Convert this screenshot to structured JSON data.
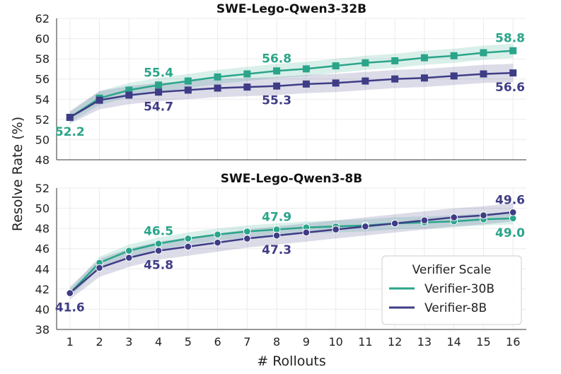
{
  "chart_data": {
    "type": "line",
    "x_label": "# Rollouts",
    "y_label": "Resolve Rate (%)",
    "legend": {
      "title": "Verifier Scale",
      "placement": "bottom-right of lower panel",
      "entries": [
        {
          "name": "Verifier-30B",
          "color": "#2aa58a"
        },
        {
          "name": "Verifier-8B",
          "color": "#3f3c86"
        }
      ]
    },
    "panels": [
      {
        "title": "SWE-Lego-Qwen3-32B",
        "x": [
          1,
          2,
          3,
          4,
          5,
          6,
          7,
          8,
          9,
          10,
          11,
          12,
          13,
          14,
          15,
          16
        ],
        "ylim": [
          48,
          62
        ],
        "yticks": [
          48,
          50,
          52,
          54,
          56,
          58,
          60,
          62
        ],
        "marker": "square",
        "series": [
          {
            "name": "Verifier-30B",
            "color": "#2aa58a",
            "values": [
              52.2,
              54.1,
              54.9,
              55.4,
              55.8,
              56.2,
              56.5,
              56.8,
              57.0,
              57.3,
              57.6,
              57.8,
              58.1,
              58.3,
              58.6,
              58.8
            ],
            "band": 0.7
          },
          {
            "name": "Verifier-8B",
            "color": "#3f3c86",
            "values": [
              52.2,
              53.9,
              54.4,
              54.7,
              54.9,
              55.1,
              55.2,
              55.3,
              55.5,
              55.6,
              55.8,
              56.0,
              56.1,
              56.3,
              56.5,
              56.6
            ],
            "band": 0.9
          }
        ],
        "annotations": [
          {
            "text": "52.2",
            "x": 1,
            "y": 52.2,
            "series": "Verifier-30B",
            "pos": "below"
          },
          {
            "text": "55.4",
            "x": 4,
            "y": 55.4,
            "series": "Verifier-30B",
            "pos": "above"
          },
          {
            "text": "56.8",
            "x": 8,
            "y": 56.8,
            "series": "Verifier-30B",
            "pos": "above"
          },
          {
            "text": "58.8",
            "x": 16,
            "y": 58.8,
            "series": "Verifier-30B",
            "pos": "above"
          },
          {
            "text": "54.7",
            "x": 4,
            "y": 54.7,
            "series": "Verifier-8B",
            "pos": "below"
          },
          {
            "text": "55.3",
            "x": 8,
            "y": 55.3,
            "series": "Verifier-8B",
            "pos": "below"
          },
          {
            "text": "56.6",
            "x": 16,
            "y": 56.6,
            "series": "Verifier-8B",
            "pos": "below"
          }
        ]
      },
      {
        "title": "SWE-Lego-Qwen3-8B",
        "x": [
          1,
          2,
          3,
          4,
          5,
          6,
          7,
          8,
          9,
          10,
          11,
          12,
          13,
          14,
          15,
          16
        ],
        "ylim": [
          38,
          52
        ],
        "yticks": [
          38,
          40,
          42,
          44,
          46,
          48,
          50,
          52
        ],
        "marker": "circle",
        "series": [
          {
            "name": "Verifier-30B",
            "color": "#2aa58a",
            "values": [
              41.6,
              44.6,
              45.8,
              46.5,
              47.0,
              47.4,
              47.7,
              47.9,
              48.1,
              48.2,
              48.3,
              48.5,
              48.6,
              48.7,
              48.9,
              49.0
            ],
            "band": 0.6
          },
          {
            "name": "Verifier-8B",
            "color": "#3f3c86",
            "values": [
              41.6,
              44.1,
              45.1,
              45.8,
              46.2,
              46.6,
              47.0,
              47.3,
              47.6,
              47.9,
              48.2,
              48.5,
              48.8,
              49.1,
              49.3,
              49.6
            ],
            "band": 0.9
          }
        ],
        "annotations": [
          {
            "text": "41.6",
            "x": 1,
            "y": 41.6,
            "series": "Verifier-8B",
            "pos": "below"
          },
          {
            "text": "46.5",
            "x": 4,
            "y": 46.5,
            "series": "Verifier-30B",
            "pos": "above"
          },
          {
            "text": "47.9",
            "x": 8,
            "y": 47.9,
            "series": "Verifier-30B",
            "pos": "above"
          },
          {
            "text": "49.0",
            "x": 16,
            "y": 49.0,
            "series": "Verifier-30B",
            "pos": "below"
          },
          {
            "text": "45.8",
            "x": 4,
            "y": 45.8,
            "series": "Verifier-8B",
            "pos": "below"
          },
          {
            "text": "47.3",
            "x": 8,
            "y": 47.3,
            "series": "Verifier-8B",
            "pos": "below"
          },
          {
            "text": "49.6",
            "x": 16,
            "y": 49.6,
            "series": "Verifier-8B",
            "pos": "above"
          }
        ]
      }
    ]
  }
}
